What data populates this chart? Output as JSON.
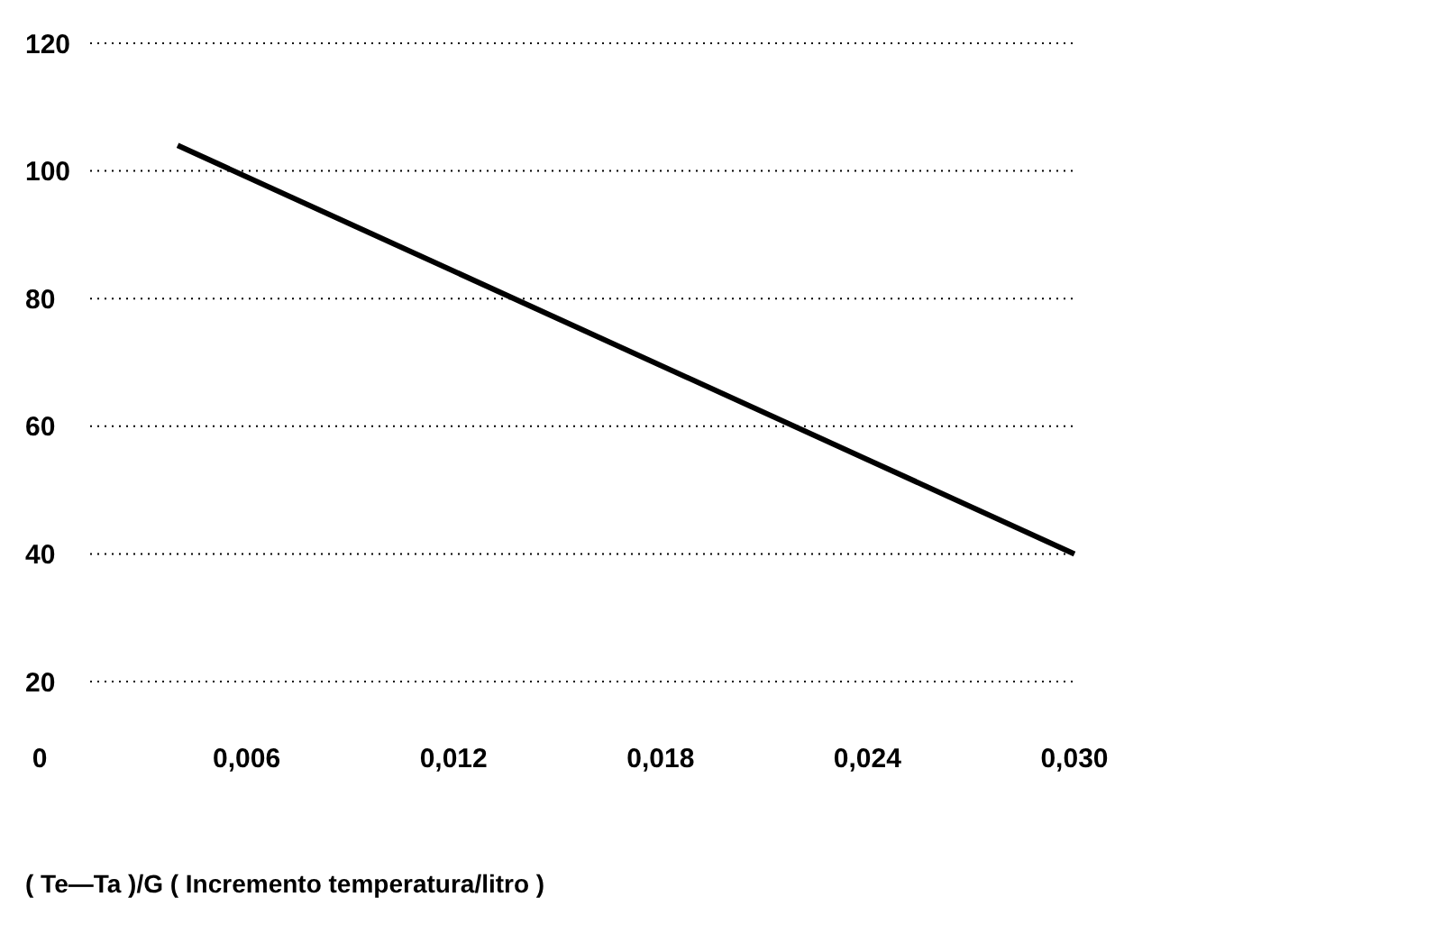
{
  "chart_data": {
    "type": "line",
    "xlabel": "( Te—Ta )/G  ( Incremento temperatura/litro )",
    "x": [
      0.004,
      0.03
    ],
    "series": [
      {
        "color": "#000000",
        "values": [
          104,
          40
        ]
      }
    ],
    "xlim": [
      0,
      0.03
    ],
    "xticks": [
      0,
      {
        "value": 0.006,
        "label": "0,006"
      },
      {
        "value": 0.012,
        "label": "0,012"
      },
      {
        "value": 0.018,
        "label": "0,018"
      },
      {
        "value": 0.024,
        "label": "0,024"
      },
      {
        "value": 0.03,
        "label": "0,030"
      }
    ],
    "ylim": [
      20,
      120
    ],
    "yticks": [
      20,
      40,
      60,
      80,
      100,
      120
    ],
    "grid": "y",
    "marker": "none",
    "line_style": "solid"
  }
}
